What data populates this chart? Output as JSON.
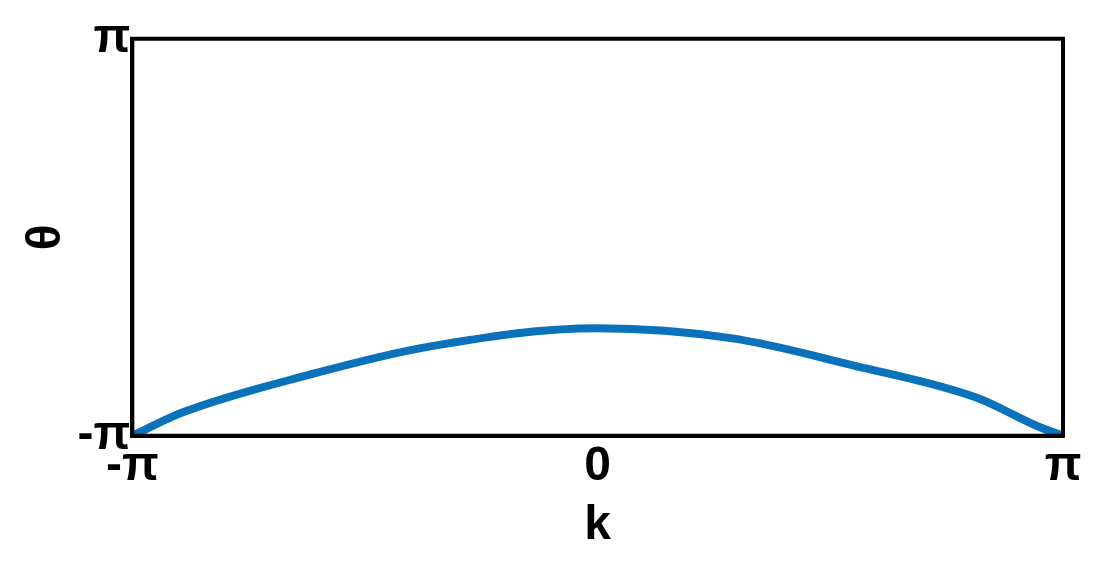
{
  "chart_data": {
    "type": "line",
    "xlabel": "k",
    "ylabel": "θ",
    "x": [
      -3.1416,
      -2.8,
      -1.97,
      -1.14,
      0,
      0.91,
      1.73,
      2.56,
      2.97,
      3.1416
    ],
    "series": [
      {
        "color": "#0a72ba",
        "values": [
          -3.14,
          -2.77,
          -2.19,
          -1.73,
          -1.44,
          -1.6,
          -2.03,
          -2.54,
          -2.99,
          -3.14
        ]
      }
    ],
    "xlim": [
      -3.1416,
      3.1416
    ],
    "ylim": [
      -3.1416,
      3.1416
    ],
    "xticks": [
      {
        "value": -3.1416,
        "label": "-π"
      },
      0,
      {
        "value": 3.1416,
        "label": "π"
      }
    ],
    "yticks": [
      {
        "value": -3.1416,
        "label": "-π"
      },
      {
        "value": 3.1416,
        "label": "π"
      }
    ],
    "grid": false,
    "legend": false,
    "marker": "none",
    "line_style": "solid"
  }
}
